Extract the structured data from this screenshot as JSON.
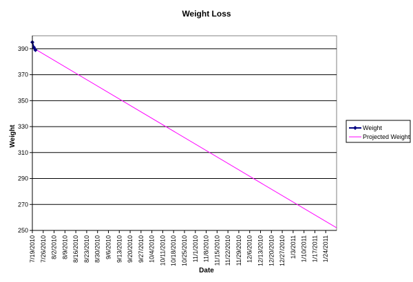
{
  "chart_data": {
    "type": "line",
    "title": "Weight Loss",
    "xlabel": "Date",
    "ylabel": "Weight",
    "ylim": [
      250,
      400
    ],
    "yticks": [
      250,
      270,
      290,
      310,
      330,
      350,
      370,
      390
    ],
    "xlim": [
      "2010-07-19",
      "2011-01-31"
    ],
    "x_tick_labels": [
      "7/19/2010",
      "7/26/2010",
      "8/2/2010",
      "8/9/2010",
      "8/16/2010",
      "8/23/2010",
      "8/30/2010",
      "9/6/2010",
      "9/13/2010",
      "9/20/2010",
      "9/27/2010",
      "10/4/2010",
      "10/11/2010",
      "10/18/2010",
      "10/25/2010",
      "11/1/2010",
      "11/8/2010",
      "11/15/2010",
      "11/22/2010",
      "11/29/2010",
      "12/6/2010",
      "12/13/2010",
      "12/20/2010",
      "12/27/2010",
      "1/3/2011",
      "1/10/2011",
      "1/17/2011",
      "1/24/2011"
    ],
    "grid": true,
    "legend": "right",
    "series": [
      {
        "name": "Weight",
        "color": "#000080",
        "marker": "diamond",
        "x": [
          "2010-07-19",
          "2010-07-20",
          "2010-07-21"
        ],
        "y": [
          395,
          391,
          389
        ]
      },
      {
        "name": "Projected Weight",
        "color": "#ff00ff",
        "marker": "none",
        "x": [
          "2010-07-19",
          "2011-01-31"
        ],
        "y": [
          391,
          252
        ]
      }
    ]
  }
}
